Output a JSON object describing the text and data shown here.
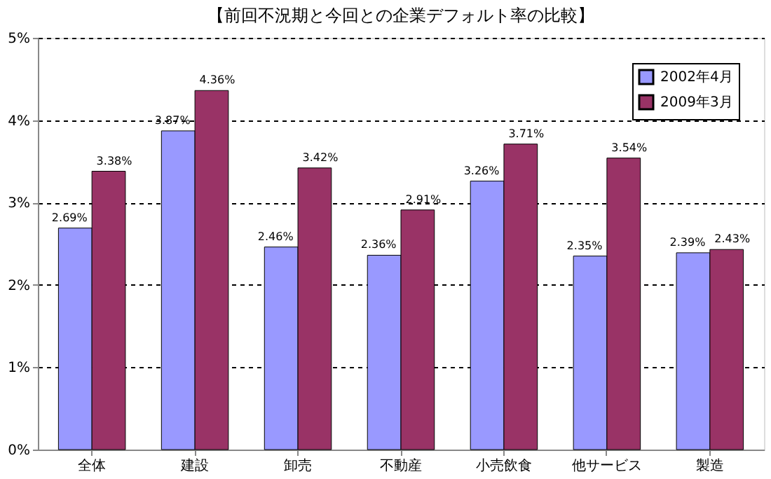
{
  "chart_data": {
    "type": "bar",
    "title": "【前回不況期と今回との企業デフォルト率の比較】",
    "categories": [
      "全体",
      "建設",
      "卸売",
      "不動産",
      "小売飲食",
      "他サービス",
      "製造"
    ],
    "series": [
      {
        "name": "2002年4月",
        "color": "#9999ff",
        "values": [
          2.69,
          3.87,
          2.46,
          2.36,
          3.26,
          2.35,
          2.39
        ],
        "value_labels": [
          "2.69%",
          "3.87%",
          "2.46%",
          "2.36%",
          "3.26%",
          "2.35%",
          "2.39%"
        ]
      },
      {
        "name": "2009年3月",
        "color": "#993366",
        "values": [
          3.38,
          4.36,
          3.42,
          2.91,
          3.71,
          3.54,
          2.43
        ],
        "value_labels": [
          "3.38%",
          "4.36%",
          "3.42%",
          "2.91%",
          "3.71%",
          "3.54%",
          "2.43%"
        ]
      }
    ],
    "ylim": [
      0,
      5
    ],
    "yticks": [
      {
        "value": 0,
        "label": "0%"
      },
      {
        "value": 1,
        "label": "1%"
      },
      {
        "value": 2,
        "label": "2%"
      },
      {
        "value": 3,
        "label": "3%"
      },
      {
        "value": 4,
        "label": "4%"
      },
      {
        "value": 5,
        "label": "5%"
      }
    ],
    "grid": "y",
    "legend": "top right"
  }
}
